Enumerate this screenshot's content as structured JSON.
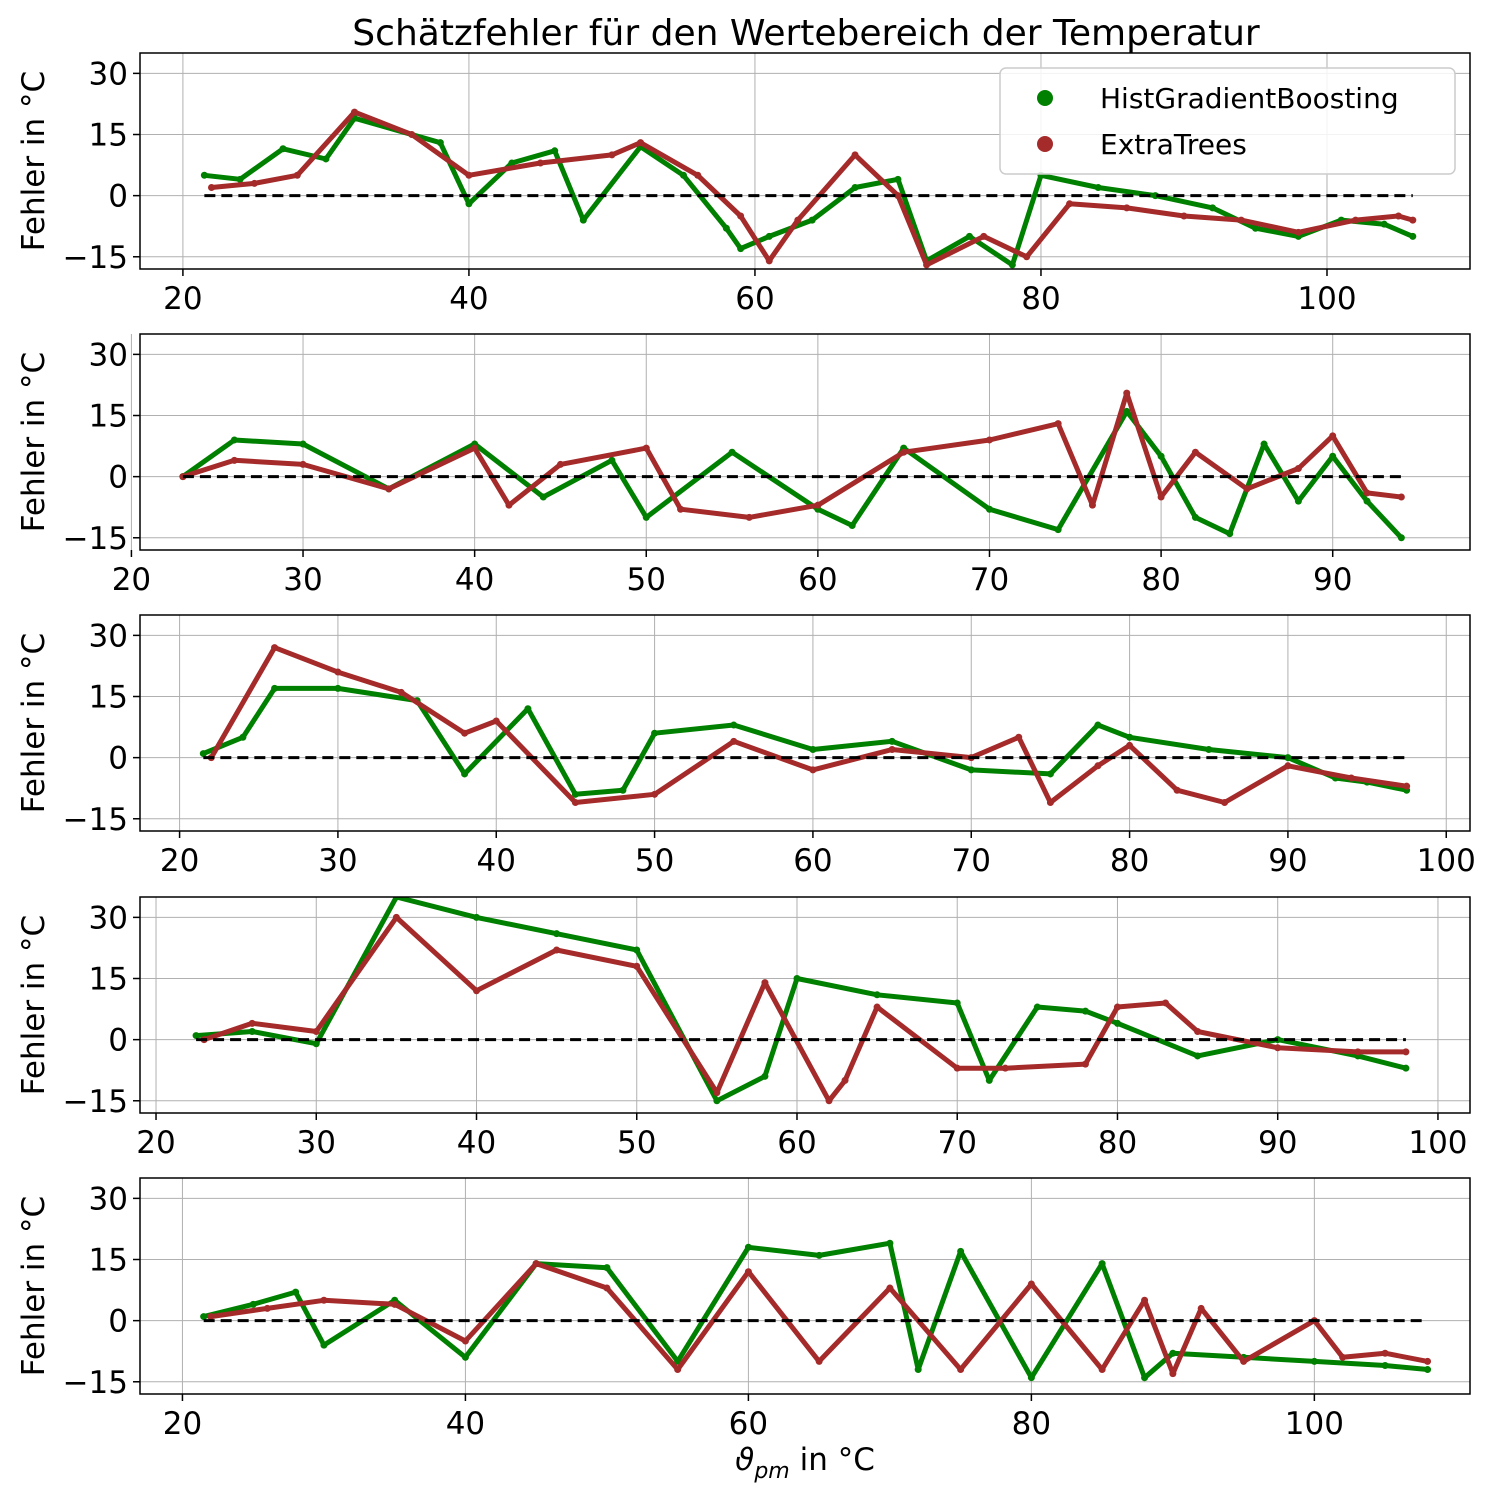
{
  "figure_title": "Schätzfehler für den Wertebereich der Temperatur",
  "legend": [
    {
      "label": "HistGradientBoosting",
      "color": "#008000"
    },
    {
      "label": "ExtraTrees",
      "color": "#a52a2a"
    }
  ],
  "zero_line_color": "#000000",
  "chart_data": [
    {
      "type": "scatter",
      "ylabel": "Fehler in °C",
      "xlabel": "",
      "xlim": [
        17,
        110
      ],
      "ylim": [
        -18,
        35
      ],
      "xticks": [
        20,
        40,
        60,
        80,
        100
      ],
      "yticks": [
        -15,
        0,
        15,
        30
      ],
      "grid": true,
      "legend_position": "top-right",
      "zero_line": [
        21.5,
        106
      ],
      "series": [
        {
          "name": "HistGradientBoosting",
          "color": "#008000",
          "points": [
            [
              21.5,
              5
            ],
            [
              24,
              4
            ],
            [
              27,
              11.5
            ],
            [
              30,
              9
            ],
            [
              32,
              19
            ],
            [
              38,
              13
            ],
            [
              40,
              -2
            ],
            [
              43,
              8
            ],
            [
              46,
              11
            ],
            [
              48,
              -6
            ],
            [
              52,
              12
            ],
            [
              55,
              5
            ],
            [
              58,
              -8
            ],
            [
              59,
              -13
            ],
            [
              61,
              -10
            ],
            [
              64,
              -6
            ],
            [
              67,
              2
            ],
            [
              70,
              4
            ],
            [
              72,
              -16
            ],
            [
              75,
              -10
            ],
            [
              78,
              -17
            ],
            [
              80,
              5
            ],
            [
              84,
              2
            ],
            [
              88,
              0
            ],
            [
              92,
              -3
            ],
            [
              95,
              -8
            ],
            [
              98,
              -10
            ],
            [
              101,
              -6
            ],
            [
              104,
              -7
            ],
            [
              106,
              -10
            ]
          ]
        },
        {
          "name": "ExtraTrees",
          "color": "#a52a2a",
          "points": [
            [
              22,
              2
            ],
            [
              25,
              3
            ],
            [
              28,
              5
            ],
            [
              32,
              20.5
            ],
            [
              36,
              15
            ],
            [
              40,
              5
            ],
            [
              45,
              8
            ],
            [
              50,
              10
            ],
            [
              52,
              13
            ],
            [
              56,
              5
            ],
            [
              59,
              -5
            ],
            [
              61,
              -16
            ],
            [
              63,
              -6
            ],
            [
              67,
              10
            ],
            [
              70,
              0
            ],
            [
              72,
              -17
            ],
            [
              76,
              -10
            ],
            [
              79,
              -15
            ],
            [
              82,
              -2
            ],
            [
              86,
              -3
            ],
            [
              90,
              -5
            ],
            [
              94,
              -6
            ],
            [
              98,
              -9
            ],
            [
              102,
              -6
            ],
            [
              105,
              -5
            ],
            [
              106,
              -6
            ]
          ]
        }
      ]
    },
    {
      "type": "scatter",
      "ylabel": "Fehler in °C",
      "xlabel": "",
      "xlim": [
        20.5,
        98
      ],
      "ylim": [
        -18,
        35
      ],
      "xticks": [
        20,
        30,
        40,
        50,
        60,
        70,
        80,
        90
      ],
      "yticks": [
        -15,
        0,
        15,
        30
      ],
      "grid": true,
      "zero_line": [
        23,
        94
      ],
      "series": [
        {
          "name": "HistGradientBoosting",
          "color": "#008000",
          "points": [
            [
              23,
              0
            ],
            [
              26,
              9
            ],
            [
              30,
              8
            ],
            [
              35,
              -3
            ],
            [
              40,
              8
            ],
            [
              44,
              -5
            ],
            [
              48,
              4
            ],
            [
              50,
              -10
            ],
            [
              55,
              6
            ],
            [
              60,
              -8
            ],
            [
              62,
              -12
            ],
            [
              65,
              7
            ],
            [
              70,
              -8
            ],
            [
              74,
              -13
            ],
            [
              78,
              16
            ],
            [
              80,
              5
            ],
            [
              82,
              -10
            ],
            [
              84,
              -14
            ],
            [
              86,
              8
            ],
            [
              88,
              -6
            ],
            [
              90,
              5
            ],
            [
              92,
              -6
            ],
            [
              94,
              -15
            ]
          ]
        },
        {
          "name": "ExtraTrees",
          "color": "#a52a2a",
          "points": [
            [
              23,
              0
            ],
            [
              26,
              4
            ],
            [
              30,
              3
            ],
            [
              35,
              -3
            ],
            [
              40,
              7
            ],
            [
              42,
              -7
            ],
            [
              45,
              3
            ],
            [
              50,
              7
            ],
            [
              52,
              -8
            ],
            [
              56,
              -10
            ],
            [
              60,
              -7
            ],
            [
              65,
              6
            ],
            [
              70,
              9
            ],
            [
              74,
              13
            ],
            [
              76,
              -7
            ],
            [
              78,
              20.5
            ],
            [
              80,
              -5
            ],
            [
              82,
              6
            ],
            [
              85,
              -3
            ],
            [
              88,
              2
            ],
            [
              90,
              10
            ],
            [
              92,
              -4
            ],
            [
              94,
              -5
            ]
          ]
        }
      ]
    },
    {
      "type": "scatter",
      "ylabel": "Fehler in °C",
      "xlabel": "",
      "xlim": [
        17.5,
        101.5
      ],
      "ylim": [
        -18,
        35
      ],
      "xticks": [
        20,
        30,
        40,
        50,
        60,
        70,
        80,
        90,
        100
      ],
      "yticks": [
        -15,
        0,
        15,
        30
      ],
      "grid": true,
      "zero_line": [
        21.5,
        97.5
      ],
      "series": [
        {
          "name": "HistGradientBoosting",
          "color": "#008000",
          "points": [
            [
              21.5,
              1
            ],
            [
              24,
              5
            ],
            [
              26,
              17
            ],
            [
              30,
              17
            ],
            [
              35,
              14
            ],
            [
              38,
              -4
            ],
            [
              42,
              12
            ],
            [
              45,
              -9
            ],
            [
              48,
              -8
            ],
            [
              50,
              6
            ],
            [
              55,
              8
            ],
            [
              60,
              2
            ],
            [
              65,
              4
            ],
            [
              70,
              -3
            ],
            [
              75,
              -4
            ],
            [
              78,
              8
            ],
            [
              80,
              5
            ],
            [
              85,
              2
            ],
            [
              90,
              0
            ],
            [
              93,
              -5
            ],
            [
              95,
              -6
            ],
            [
              97.5,
              -8
            ]
          ]
        },
        {
          "name": "ExtraTrees",
          "color": "#a52a2a",
          "points": [
            [
              22,
              0
            ],
            [
              26,
              27
            ],
            [
              30,
              21
            ],
            [
              34,
              16
            ],
            [
              38,
              6
            ],
            [
              40,
              9
            ],
            [
              45,
              -11
            ],
            [
              50,
              -9
            ],
            [
              55,
              4
            ],
            [
              60,
              -3
            ],
            [
              65,
              2
            ],
            [
              70,
              0
            ],
            [
              73,
              5
            ],
            [
              75,
              -11
            ],
            [
              78,
              -2
            ],
            [
              80,
              3
            ],
            [
              83,
              -8
            ],
            [
              86,
              -11
            ],
            [
              90,
              -2
            ],
            [
              94,
              -5
            ],
            [
              97.5,
              -7
            ]
          ]
        }
      ]
    },
    {
      "type": "scatter",
      "ylabel": "Fehler in °C",
      "xlabel": "",
      "xlim": [
        19,
        102
      ],
      "ylim": [
        -18,
        35
      ],
      "xticks": [
        20,
        30,
        40,
        50,
        60,
        70,
        80,
        90,
        100
      ],
      "yticks": [
        -15,
        0,
        15,
        30
      ],
      "grid": true,
      "zero_line": [
        22.5,
        98
      ],
      "series": [
        {
          "name": "HistGradientBoosting",
          "color": "#008000",
          "points": [
            [
              22.5,
              1
            ],
            [
              26,
              2
            ],
            [
              30,
              -1
            ],
            [
              35,
              35
            ],
            [
              40,
              30
            ],
            [
              45,
              26
            ],
            [
              50,
              22
            ],
            [
              55,
              -15
            ],
            [
              58,
              -9
            ],
            [
              60,
              15
            ],
            [
              65,
              11
            ],
            [
              70,
              9
            ],
            [
              72,
              -10
            ],
            [
              75,
              8
            ],
            [
              78,
              7
            ],
            [
              80,
              4
            ],
            [
              85,
              -4
            ],
            [
              90,
              0
            ],
            [
              95,
              -4
            ],
            [
              98,
              -7
            ]
          ]
        },
        {
          "name": "ExtraTrees",
          "color": "#a52a2a",
          "points": [
            [
              23,
              0
            ],
            [
              26,
              4
            ],
            [
              30,
              2
            ],
            [
              35,
              30
            ],
            [
              40,
              12
            ],
            [
              45,
              22
            ],
            [
              50,
              18
            ],
            [
              55,
              -13
            ],
            [
              58,
              14
            ],
            [
              62,
              -15
            ],
            [
              63,
              -10
            ],
            [
              65,
              8
            ],
            [
              70,
              -7
            ],
            [
              73,
              -7
            ],
            [
              78,
              -6
            ],
            [
              80,
              8
            ],
            [
              83,
              9
            ],
            [
              85,
              2
            ],
            [
              90,
              -2
            ],
            [
              95,
              -3
            ],
            [
              98,
              -3
            ]
          ]
        }
      ]
    },
    {
      "type": "scatter",
      "ylabel": "Fehler in °C",
      "xlabel": "ϑpm in °C",
      "xlim": [
        17,
        111
      ],
      "ylim": [
        -18,
        35
      ],
      "xticks": [
        20,
        40,
        60,
        80,
        100
      ],
      "yticks": [
        -15,
        0,
        15,
        30
      ],
      "grid": true,
      "zero_line": [
        21.5,
        108
      ],
      "series": [
        {
          "name": "HistGradientBoosting",
          "color": "#008000",
          "points": [
            [
              21.5,
              1
            ],
            [
              25,
              4
            ],
            [
              28,
              7
            ],
            [
              30,
              -6
            ],
            [
              35,
              5
            ],
            [
              40,
              -9
            ],
            [
              45,
              14
            ],
            [
              50,
              13
            ],
            [
              55,
              -10
            ],
            [
              60,
              18
            ],
            [
              65,
              16
            ],
            [
              70,
              19
            ],
            [
              72,
              -12
            ],
            [
              75,
              17
            ],
            [
              80,
              -14
            ],
            [
              85,
              14
            ],
            [
              88,
              -14
            ],
            [
              90,
              -8
            ],
            [
              95,
              -9
            ],
            [
              100,
              -10
            ],
            [
              105,
              -11
            ],
            [
              108,
              -12
            ]
          ]
        },
        {
          "name": "ExtraTrees",
          "color": "#a52a2a",
          "points": [
            [
              22,
              1
            ],
            [
              26,
              3
            ],
            [
              30,
              5
            ],
            [
              35,
              4
            ],
            [
              40,
              -5
            ],
            [
              45,
              14
            ],
            [
              50,
              8
            ],
            [
              55,
              -12
            ],
            [
              60,
              12
            ],
            [
              65,
              -10
            ],
            [
              70,
              8
            ],
            [
              75,
              -12
            ],
            [
              80,
              9
            ],
            [
              85,
              -12
            ],
            [
              88,
              5
            ],
            [
              90,
              -13
            ],
            [
              92,
              3
            ],
            [
              95,
              -10
            ],
            [
              100,
              0
            ],
            [
              102,
              -9
            ],
            [
              105,
              -8
            ],
            [
              108,
              -10
            ]
          ]
        }
      ]
    }
  ]
}
